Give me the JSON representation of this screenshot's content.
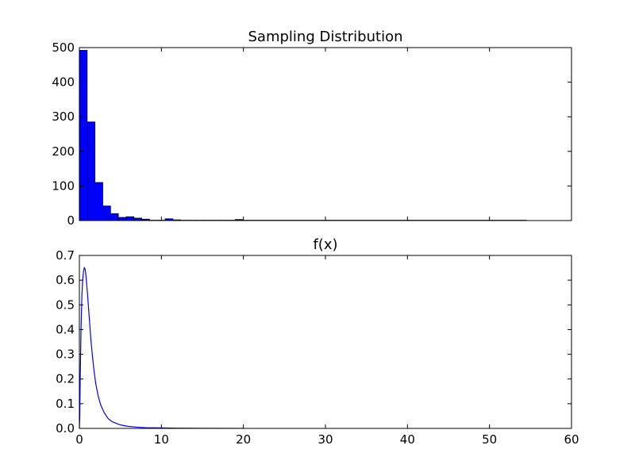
{
  "chart_data": [
    {
      "type": "bar",
      "title": "Sampling Distribution",
      "xlabel": "",
      "ylabel": "",
      "xlim": [
        0,
        60
      ],
      "ylim": [
        0,
        500
      ],
      "yticks": [
        0,
        100,
        200,
        300,
        400,
        500
      ],
      "xticks_shown": false,
      "grid": false,
      "color": "#0000ff",
      "edge_color": "#000000",
      "bin_edges": [
        0,
        0.95,
        1.9,
        2.85,
        3.8,
        4.75,
        5.7,
        6.65,
        7.6,
        8.55,
        9.5,
        10.45,
        11.4,
        12.35,
        13.3,
        14.25,
        15.2,
        16.15,
        17.1,
        18.05,
        19.0,
        19.95,
        54.5
      ],
      "values": [
        492,
        285,
        110,
        42,
        20,
        9,
        11,
        7,
        4,
        1,
        1,
        5,
        2,
        1,
        1,
        1,
        1,
        1,
        1,
        1,
        3,
        1
      ]
    },
    {
      "type": "line",
      "title": "f(x)",
      "xlabel": "",
      "ylabel": "",
      "xlim": [
        0,
        60
      ],
      "ylim": [
        0,
        0.7
      ],
      "xticks": [
        0,
        10,
        20,
        30,
        40,
        50,
        60
      ],
      "yticks": [
        "0.0",
        "0.1",
        "0.2",
        "0.3",
        "0.4",
        "0.5",
        "0.6",
        "0.7"
      ],
      "grid": false,
      "color": "#0000ff",
      "x": [
        0.05,
        0.1,
        0.2,
        0.3,
        0.4,
        0.5,
        0.6,
        0.7,
        0.8,
        0.9,
        1.0,
        1.2,
        1.4,
        1.6,
        1.8,
        2.0,
        2.3,
        2.6,
        3.0,
        3.5,
        4.0,
        5.0,
        6.0,
        7.0,
        8.0,
        10.0,
        12.0,
        15.0,
        20.0
      ],
      "y": [
        0.05,
        0.2,
        0.4,
        0.53,
        0.6,
        0.635,
        0.65,
        0.645,
        0.62,
        0.58,
        0.54,
        0.45,
        0.36,
        0.29,
        0.23,
        0.18,
        0.13,
        0.095,
        0.065,
        0.04,
        0.027,
        0.014,
        0.008,
        0.005,
        0.003,
        0.002,
        0.001,
        0.0005,
        0.0002
      ]
    }
  ]
}
